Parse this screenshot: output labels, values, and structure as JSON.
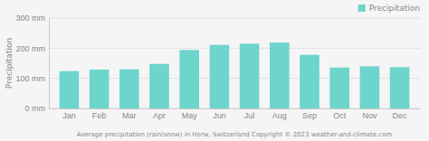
{
  "chart_data": {
    "type": "bar",
    "categories": [
      "Jan",
      "Feb",
      "Mar",
      "Apr",
      "May",
      "Jun",
      "Jul",
      "Aug",
      "Sep",
      "Oct",
      "Nov",
      "Dec"
    ],
    "series": [
      {
        "name": "Precipitation",
        "color": "#6dd5cb",
        "values": [
          124,
          129,
          130,
          148,
          194,
          211,
          215,
          219,
          178,
          136,
          140,
          137
        ]
      }
    ],
    "ylabel": "Precipitation",
    "xlabel": "Average precipitation (rain/snow) in Horw, Switzerland   Copyright © 2023  weather-and-climate.com",
    "ylim": [
      0,
      300
    ],
    "yticks": [
      {
        "value": 0,
        "label": "0 mm"
      },
      {
        "value": 100,
        "label": "100 mm"
      },
      {
        "value": 200,
        "label": "200 mm"
      },
      {
        "value": 300,
        "label": "300 mm"
      }
    ],
    "grid": true,
    "legend": "top-right"
  }
}
